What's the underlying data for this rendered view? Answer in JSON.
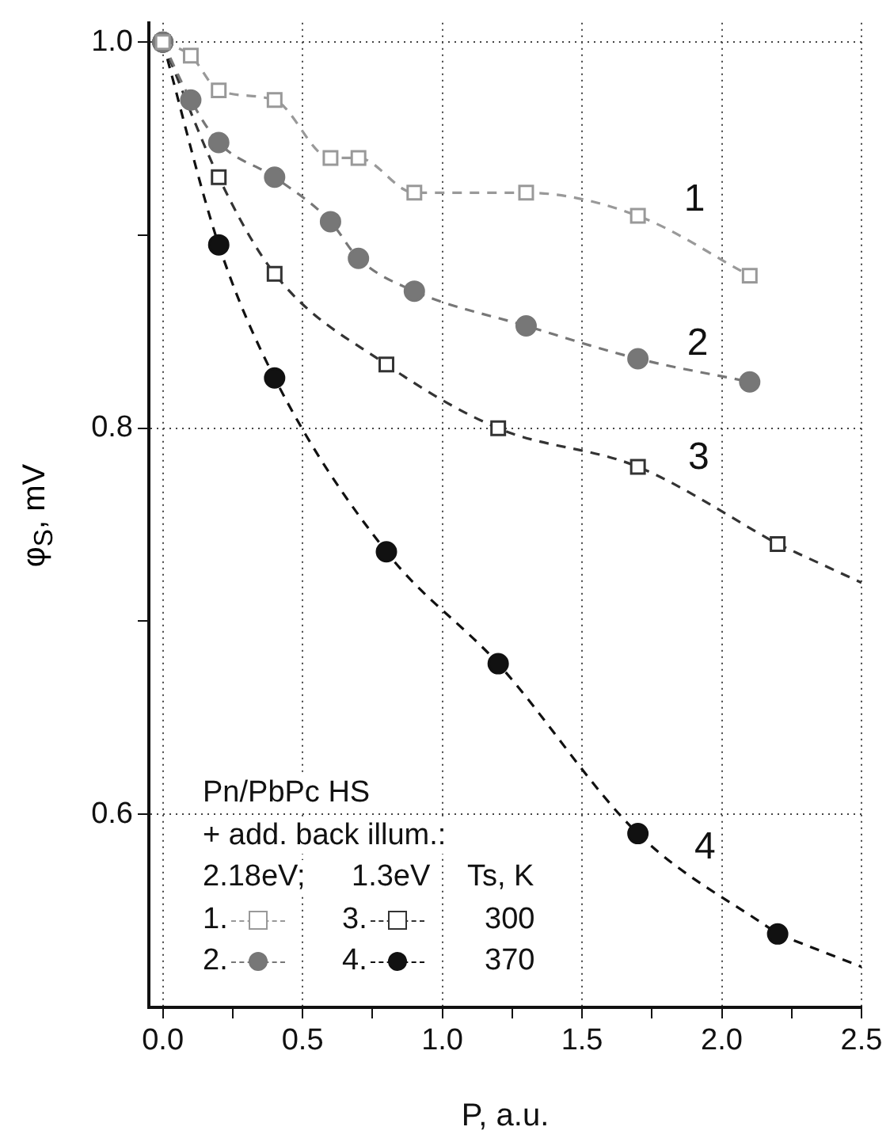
{
  "chart_data": {
    "type": "line",
    "xlabel": "P, a.u.",
    "ylabel": "φ$_{S}$, mV",
    "xlim": [
      -0.05,
      2.5
    ],
    "ylim": [
      0.5,
      1.01
    ],
    "xticks": [
      {
        "value": 0,
        "label": "0.0"
      },
      {
        "value": 0.25,
        "label": null
      },
      0.5,
      {
        "value": 0.75,
        "label": null
      },
      {
        "value": 1,
        "label": "1.0"
      },
      {
        "value": 1.25,
        "label": null
      },
      1.5,
      {
        "value": 1.75,
        "label": null
      },
      {
        "value": 2,
        "label": "2.0"
      },
      {
        "value": 2.25,
        "label": null
      },
      2.5
    ],
    "yticks": [
      0.6,
      {
        "value": 0.7,
        "label": null
      },
      0.8,
      {
        "value": 0.9,
        "label": null
      },
      {
        "value": 1,
        "label": "1.0"
      }
    ],
    "grid": true,
    "legend": "bottom left",
    "line_style": "dashed",
    "series": [
      {
        "name": "1.",
        "marker": "square",
        "color": "#999999",
        "x": [
          0,
          0.1,
          0.2,
          0.4,
          0.6,
          0.7,
          0.9,
          1.3,
          1.7,
          2.1
        ],
        "values": [
          1,
          0.993,
          0.975,
          0.97,
          0.94,
          0.94,
          0.922,
          0.922,
          0.91,
          0.879
        ]
      },
      {
        "name": "2.",
        "marker": "circle",
        "color": "#777777",
        "x": [
          0,
          0.1,
          0.2,
          0.4,
          0.6,
          0.7,
          0.9,
          1.3,
          1.7,
          2.1
        ],
        "values": [
          1,
          0.97,
          0.948,
          0.93,
          0.907,
          0.888,
          0.871,
          0.853,
          0.836,
          0.824
        ]
      },
      {
        "name": "3.",
        "marker": "square",
        "color": "#333333",
        "x": [
          0,
          0.2,
          0.4,
          0.8,
          1.2,
          1.7,
          2.2
        ],
        "values": [
          1,
          0.93,
          0.88,
          0.833,
          0.8,
          0.78,
          0.74
        ]
      },
      {
        "name": "4.",
        "marker": "circle",
        "color": "#111111",
        "x": [
          0,
          0.2,
          0.4,
          0.8,
          1.2,
          1.7,
          2.2
        ],
        "values": [
          1,
          0.895,
          0.826,
          0.736,
          0.678,
          0.59,
          0.538
        ]
      },
      {
        "marker": "none",
        "color": "#333333",
        "x": [
          2.2,
          2.5
        ],
        "values": [
          0.74,
          0.72
        ]
      },
      {
        "marker": "none",
        "color": "#111111",
        "x": [
          2.2,
          2.5
        ],
        "values": [
          0.538,
          0.521
        ]
      }
    ],
    "annotations": [
      "1",
      "2",
      "3",
      "4",
      "Pn/PbPc HS",
      "+ add. back illum.:",
      "2.18eV;",
      "1.3eV",
      "Ts, K",
      "300",
      "370"
    ]
  }
}
